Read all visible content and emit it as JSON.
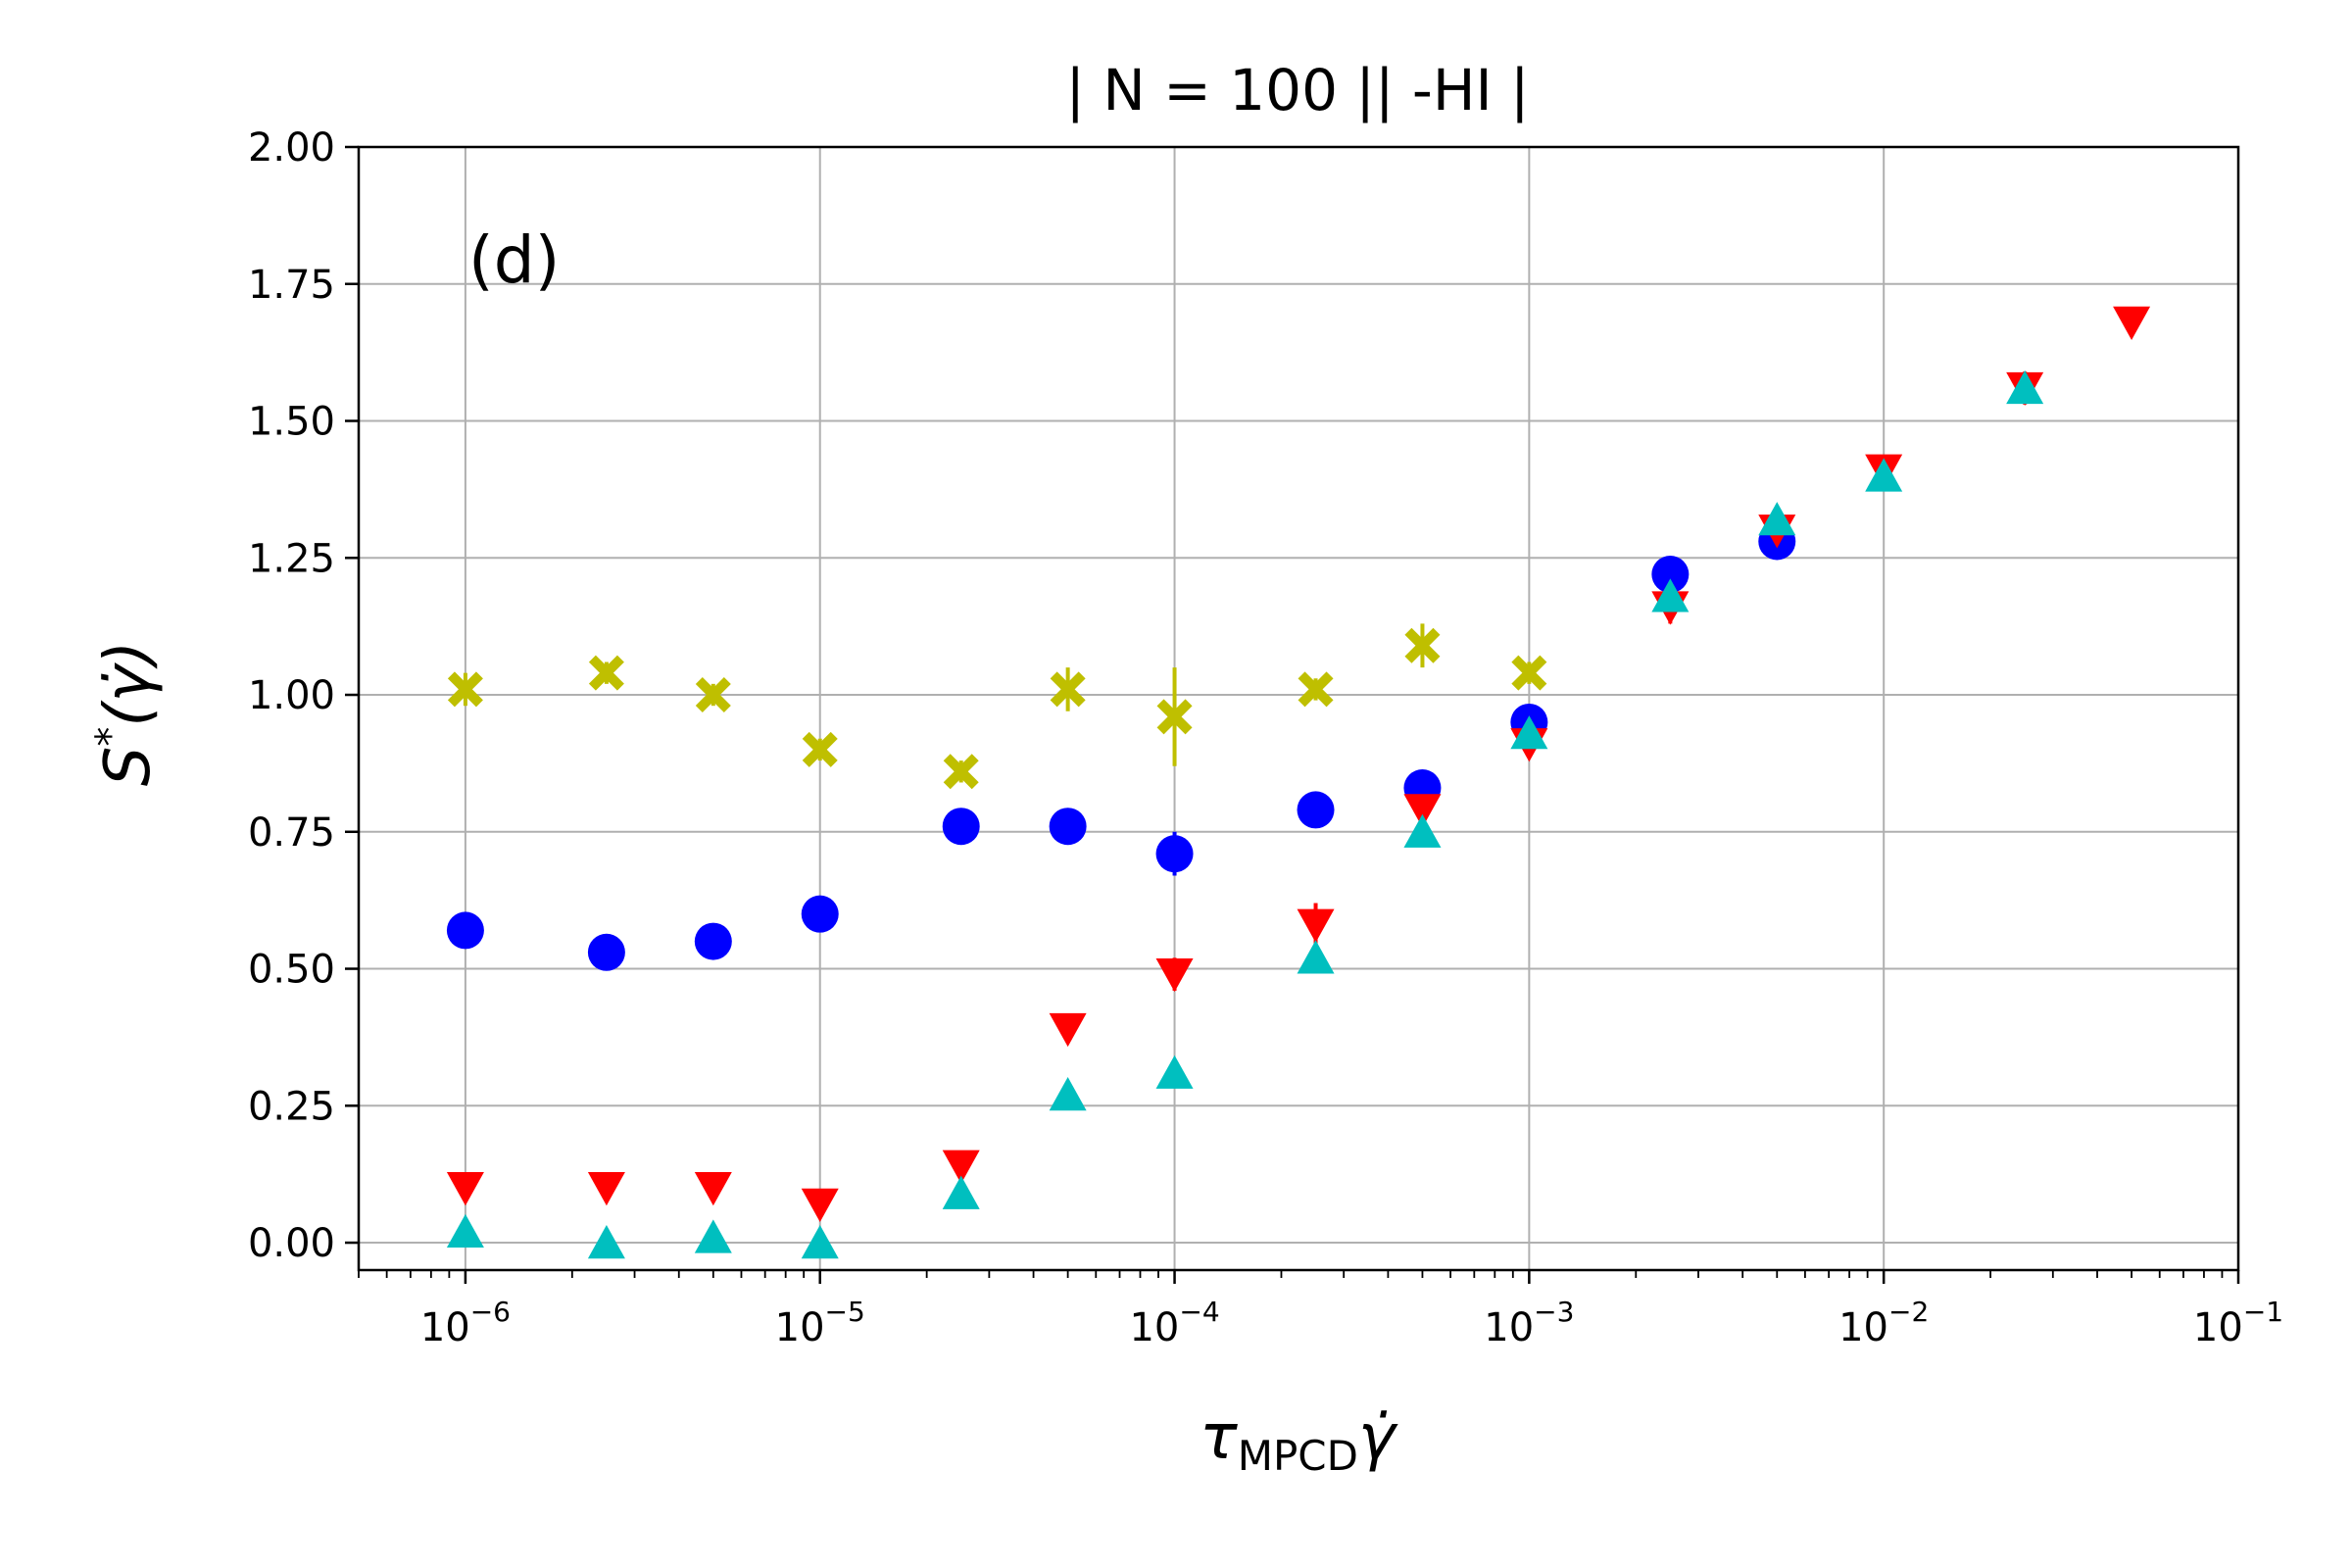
{
  "chart_data": {
    "type": "scatter",
    "title": "| N = 100 || -HI  |",
    "panel_label": "(d)",
    "xlabel": "τMPCDγ̇",
    "ylabel": "S*(γ̇)",
    "xscale": "log",
    "xlim": [
      5e-07,
      0.1
    ],
    "ylim": [
      -0.05,
      2.0
    ],
    "grid": true,
    "x_ticks": [
      1e-06,
      1e-05,
      0.0001,
      0.001,
      0.01,
      0.1
    ],
    "x_tick_exponents": [
      "−6",
      "−5",
      "−4",
      "−3",
      "−2",
      "−1"
    ],
    "x_tick_base": "10",
    "y_ticks": [
      0.0,
      0.25,
      0.5,
      0.75,
      1.0,
      1.25,
      1.5,
      1.75,
      2.0
    ],
    "y_tick_labels": [
      "0.00",
      "0.25",
      "0.50",
      "0.75",
      "1.00",
      "1.25",
      "1.50",
      "1.75",
      "2.00"
    ],
    "series": [
      {
        "name": "yellow-cross",
        "marker": "X",
        "color": "#bfbf00",
        "x": [
          1e-06,
          2.5e-06,
          5e-06,
          1e-05,
          2.5e-05,
          5e-05,
          0.0001,
          0.00025,
          0.0005,
          0.001
        ],
        "y": [
          1.01,
          1.04,
          1.0,
          0.9,
          0.86,
          1.01,
          0.96,
          1.01,
          1.09,
          1.04
        ],
        "err": [
          0.03,
          0.02,
          0.02,
          0.02,
          0.02,
          0.04,
          0.09,
          0.02,
          0.04,
          0.02
        ]
      },
      {
        "name": "blue-circle",
        "marker": "o",
        "color": "#0000ff",
        "x": [
          1e-06,
          2.5e-06,
          5e-06,
          1e-05,
          2.5e-05,
          5e-05,
          0.0001,
          0.00025,
          0.0005,
          0.001,
          0.0025,
          0.005
        ],
        "y": [
          0.57,
          0.53,
          0.55,
          0.6,
          0.76,
          0.76,
          0.71,
          0.79,
          0.83,
          0.95,
          1.22,
          1.28
        ],
        "err": [
          0.01,
          0.01,
          0.01,
          0.02,
          0.01,
          0.03,
          0.04,
          0.03,
          0.02,
          0.02,
          0.02,
          0.01
        ]
      },
      {
        "name": "red-triangle-down",
        "marker": "v",
        "color": "#ff0000",
        "x": [
          1e-06,
          2.5e-06,
          5e-06,
          1e-05,
          2.5e-05,
          5e-05,
          0.0001,
          0.00025,
          0.0005,
          0.001,
          0.0025,
          0.005,
          0.01,
          0.025,
          0.05
        ],
        "y": [
          0.1,
          0.1,
          0.1,
          0.07,
          0.14,
          0.39,
          0.49,
          0.58,
          0.79,
          0.91,
          1.16,
          1.3,
          1.41,
          1.56,
          1.68
        ],
        "err": [
          0.01,
          0.01,
          0.02,
          0.02,
          0.02,
          0.02,
          0.03,
          0.04,
          0.02,
          0.02,
          0.03,
          0.01,
          0.01,
          0.03,
          0.01
        ]
      },
      {
        "name": "cyan-triangle-up",
        "marker": "^",
        "color": "#00bfbf",
        "x": [
          1e-06,
          2.5e-06,
          5e-06,
          1e-05,
          2.5e-05,
          5e-05,
          0.0001,
          0.00025,
          0.0005,
          0.001,
          0.0025,
          0.005,
          0.01,
          0.025
        ],
        "y": [
          0.02,
          0.0,
          0.01,
          0.0,
          0.09,
          0.27,
          0.31,
          0.52,
          0.75,
          0.93,
          1.18,
          1.32,
          1.4,
          1.56
        ],
        "err": [
          0.01,
          0.01,
          0.01,
          0.01,
          0.01,
          0.02,
          0.02,
          0.02,
          0.02,
          0.02,
          0.02,
          0.02,
          0.01,
          0.02
        ]
      }
    ]
  }
}
